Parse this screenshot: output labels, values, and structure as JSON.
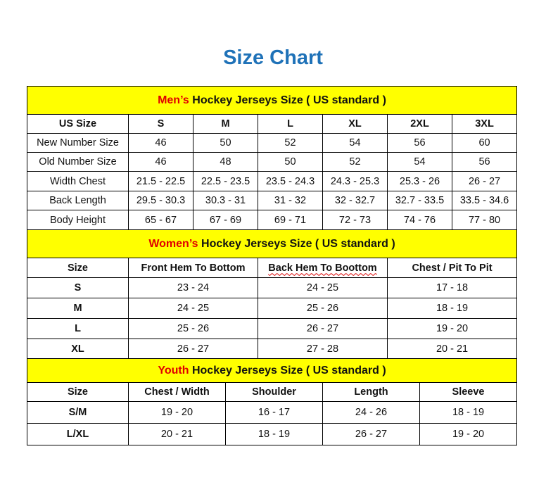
{
  "title": "Size Chart",
  "colors": {
    "title": "#1f72b8",
    "header_bg": "#ffff00",
    "highlight": "#e00000"
  },
  "mens": {
    "heading_highlight": "Men’s",
    "heading_rest": " Hockey Jerseys Size ( US standard )",
    "columns": [
      "US Size",
      "S",
      "M",
      "L",
      "XL",
      "2XL",
      "3XL"
    ],
    "rows": [
      [
        "New Number Size",
        "46",
        "50",
        "52",
        "54",
        "56",
        "60"
      ],
      [
        "Old Number Size",
        "46",
        "48",
        "50",
        "52",
        "54",
        "56"
      ],
      [
        "Width Chest",
        "21.5 - 22.5",
        "22.5 - 23.5",
        "23.5 - 24.3",
        "24.3 - 25.3",
        "25.3 - 26",
        "26 - 27"
      ],
      [
        "Back Length",
        "29.5 - 30.3",
        "30.3 - 31",
        "31 - 32",
        "32 - 32.7",
        "32.7 - 33.5",
        "33.5 - 34.6"
      ],
      [
        "Body Height",
        "65 - 67",
        "67 - 69",
        "69 - 71",
        "72 - 73",
        "74 - 76",
        "77 - 80"
      ]
    ]
  },
  "womens": {
    "heading_highlight": "Women’s",
    "heading_rest": " Hockey Jerseys Size ( US standard )",
    "columns": [
      "Size",
      "Front Hem To Bottom",
      "Back Hem To Boottom",
      "Chest / Pit To Pit"
    ],
    "rows": [
      [
        "S",
        "23 - 24",
        "24 - 25",
        "17 - 18"
      ],
      [
        "M",
        "24 - 25",
        "25 - 26",
        "18 - 19"
      ],
      [
        "L",
        "25 - 26",
        "26 - 27",
        "19 - 20"
      ],
      [
        "XL",
        "26 - 27",
        "27 - 28",
        "20 - 21"
      ]
    ]
  },
  "youth": {
    "heading_highlight": "Youth",
    "heading_rest": " Hockey Jerseys Size ( US standard )",
    "columns": [
      "Size",
      "Chest / Width",
      "Shoulder",
      "Length",
      "Sleeve"
    ],
    "rows": [
      [
        "S/M",
        "19 - 20",
        "16 - 17",
        "24 - 26",
        "18 - 19"
      ],
      [
        "L/XL",
        "20 - 21",
        "18 - 19",
        "26 - 27",
        "19 - 20"
      ]
    ]
  }
}
